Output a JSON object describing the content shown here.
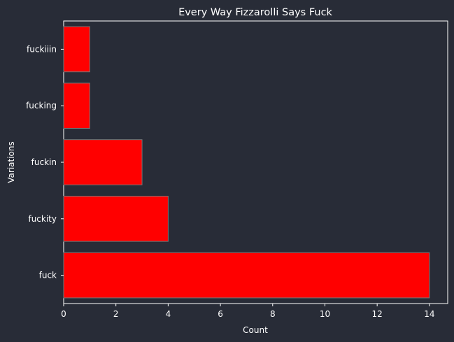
{
  "chart_data": {
    "type": "bar",
    "orientation": "horizontal",
    "title": "Every Way Fizzarolli Says Fuck",
    "xlabel": "Count",
    "ylabel": "Variations",
    "categories": [
      "fuck",
      "fuckity",
      "fuckin",
      "fucking",
      "fuckiiin"
    ],
    "values": [
      14,
      4,
      3,
      1,
      1
    ],
    "xlim": [
      0,
      14.7
    ],
    "xticks": [
      0,
      2,
      4,
      6,
      8,
      10,
      12,
      14
    ],
    "grid": false,
    "legend": "none",
    "colors": {
      "background": "#282c37",
      "bar_fill": "#ff0000",
      "bar_edge": "#777777",
      "axis": "#ffffff",
      "text": "#ffffff"
    }
  }
}
